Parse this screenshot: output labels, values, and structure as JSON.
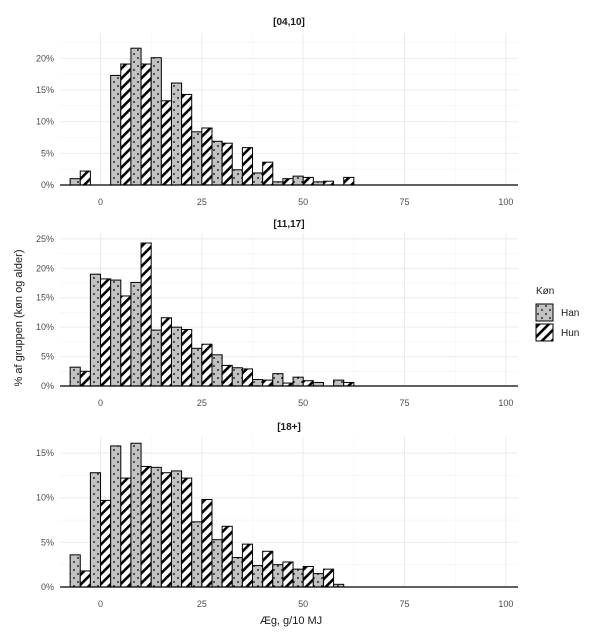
{
  "chart_data": {
    "type": "bar",
    "xlabel": "Æg, g/10 MJ",
    "ylabel": "% af gruppen (køn og alder)",
    "xlim": [
      -10,
      103
    ],
    "x_ticks": [
      0,
      25,
      50,
      75,
      100
    ],
    "grid": true,
    "legend": {
      "title": "Køn",
      "position": "right",
      "entries": [
        {
          "name": "Han",
          "pattern": "dots"
        },
        {
          "name": "Hun",
          "pattern": "stripes"
        }
      ]
    },
    "colors": {
      "fill": "#c2c2c2",
      "bar_stroke": "#000000",
      "grid": "#ebebeb"
    },
    "bin_width": 5,
    "bin_centers": [
      -5,
      0,
      5,
      10,
      15,
      20,
      25,
      30,
      35,
      40,
      45,
      50,
      55,
      60,
      65,
      70,
      75,
      80,
      85,
      90,
      95,
      100
    ],
    "panels": [
      {
        "title": "[04,10]",
        "ylim": [
          0,
          0.24
        ],
        "y_ticks": [
          0,
          0.05,
          0.1,
          0.15,
          0.2
        ],
        "y_tick_labels": [
          "0%",
          "5%",
          "10%",
          "15%",
          "20%"
        ],
        "series": [
          {
            "name": "Han",
            "values": [
              0.01,
              null,
              0.173,
              0.216,
              0.201,
              0.161,
              0.084,
              0.069,
              0.024,
              0.019,
              0.005,
              0.014,
              0.005,
              0.0,
              0.0,
              0.0,
              0.0,
              0.0,
              0.0,
              0.0,
              0.0,
              0.0
            ]
          },
          {
            "name": "Hun",
            "values": [
              0.022,
              null,
              0.191,
              0.191,
              0.133,
              0.143,
              0.09,
              0.066,
              0.059,
              0.036,
              0.01,
              0.012,
              0.006,
              0.012,
              0.0,
              0.0,
              0.0,
              0.0,
              0.0,
              0.0,
              0.0,
              0.0
            ]
          }
        ]
      },
      {
        "title": "[11,17]",
        "ylim": [
          0,
          0.26
        ],
        "y_ticks": [
          0,
          0.05,
          0.1,
          0.15,
          0.2,
          0.25
        ],
        "y_tick_labels": [
          "0%",
          "5%",
          "10%",
          "15%",
          "20%",
          "25%"
        ],
        "series": [
          {
            "name": "Han",
            "values": [
              0.032,
              0.19,
              0.18,
              0.176,
              0.095,
              0.1,
              0.064,
              0.053,
              0.031,
              0.011,
              0.021,
              0.015,
              0.006,
              0.01,
              0.0,
              0.0,
              0.0,
              0.0,
              0.0,
              0.0,
              0.0,
              0.0
            ]
          },
          {
            "name": "Hun",
            "values": [
              0.025,
              0.182,
              0.153,
              0.243,
              0.116,
              0.096,
              0.071,
              0.035,
              0.029,
              0.01,
              0.005,
              0.009,
              0.0,
              0.006,
              0.0,
              0.0,
              0.0,
              0.0,
              0.0,
              0.0,
              0.0,
              0.0
            ]
          }
        ]
      },
      {
        "title": "[18+]",
        "ylim": [
          0,
          0.168
        ],
        "y_ticks": [
          0,
          0.05,
          0.1,
          0.15
        ],
        "y_tick_labels": [
          "0%",
          "5%",
          "10%",
          "15%"
        ],
        "series": [
          {
            "name": "Han",
            "values": [
              0.036,
              0.128,
              0.158,
              0.161,
              0.134,
              0.13,
              0.073,
              0.053,
              0.033,
              0.024,
              0.025,
              0.02,
              0.015,
              0.003,
              0.0,
              0.0,
              0.0,
              0.0,
              0.0,
              0.0,
              0.0,
              0.0
            ]
          },
          {
            "name": "Hun",
            "values": [
              0.018,
              0.097,
              0.122,
              0.135,
              0.128,
              0.122,
              0.098,
              0.068,
              0.048,
              0.04,
              0.028,
              0.023,
              0.02,
              0.0,
              0.0,
              0.0,
              0.0,
              0.0,
              0.0,
              0.0,
              0.0,
              0.0
            ]
          }
        ]
      }
    ]
  }
}
